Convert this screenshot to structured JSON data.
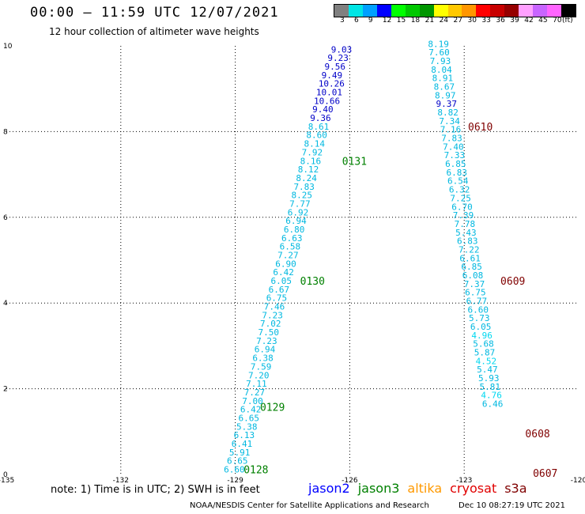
{
  "header": {
    "title": "00:00 – 11:59 UTC 12/07/2021",
    "subtitle": "12 hour collection of altimeter wave heights"
  },
  "colorbar": {
    "colors": [
      "#808080",
      "#00e5e5",
      "#00a0ff",
      "#0000ff",
      "#00ff00",
      "#00c800",
      "#009600",
      "#ffff00",
      "#ffc800",
      "#ff9600",
      "#ff0000",
      "#c80000",
      "#960000",
      "#ffa0ff",
      "#c864ff",
      "#ff64ff",
      "#000000"
    ],
    "labels": [
      "3",
      "6",
      "9",
      "12",
      "15",
      "18",
      "21",
      "24",
      "27",
      "30",
      "33",
      "36",
      "39",
      "42",
      "45",
      "70",
      "(ft)"
    ]
  },
  "map": {
    "lon_min": -135,
    "lon_max": -120,
    "lat_min": 0,
    "lat_max": 10,
    "x_ticks": [
      "-135",
      "-132",
      "-129",
      "-126",
      "-123",
      "-120"
    ],
    "y_ticks": [
      "0",
      "2",
      "4",
      "6",
      "8",
      "10"
    ],
    "grid": true
  },
  "tracks": [
    {
      "id": "track-a",
      "labels": [
        {
          "text": "0128",
          "color": "#008000",
          "lon": -128.78,
          "lat": 0.12
        },
        {
          "text": "0129",
          "color": "#008000",
          "lon": -128.35,
          "lat": 1.58
        },
        {
          "text": "0130",
          "color": "#008000",
          "lon": -127.3,
          "lat": 4.52
        },
        {
          "text": "0131",
          "color": "#008000",
          "lon": -126.2,
          "lat": 7.32
        }
      ],
      "points": [
        {
          "v": "6.60",
          "lat": 0.12,
          "lon": -129.3,
          "c": "#00b8e0"
        },
        {
          "v": "6.65",
          "lat": 0.32,
          "lon": -129.22,
          "c": "#00b8e0"
        },
        {
          "v": "5.91",
          "lat": 0.52,
          "lon": -129.16,
          "c": "#00b8e0"
        },
        {
          "v": "6.41",
          "lat": 0.72,
          "lon": -129.1,
          "c": "#00b8e0"
        },
        {
          "v": "6.13",
          "lat": 0.92,
          "lon": -129.04,
          "c": "#00b8e0"
        },
        {
          "v": "5.38",
          "lat": 1.12,
          "lon": -128.97,
          "c": "#00b8e0"
        },
        {
          "v": "6.65",
          "lat": 1.32,
          "lon": -128.92,
          "c": "#00b8e0"
        },
        {
          "v": "6.42",
          "lat": 1.52,
          "lon": -128.87,
          "c": "#00b8e0"
        },
        {
          "v": "7.00",
          "lat": 1.72,
          "lon": -128.82,
          "c": "#00b8e0"
        },
        {
          "v": "7.27",
          "lat": 1.92,
          "lon": -128.77,
          "c": "#00b8e0"
        },
        {
          "v": "7.11",
          "lat": 2.12,
          "lon": -128.72,
          "c": "#00b8e0"
        },
        {
          "v": "7.20",
          "lat": 2.32,
          "lon": -128.66,
          "c": "#00b8e0"
        },
        {
          "v": "7.59",
          "lat": 2.52,
          "lon": -128.6,
          "c": "#00b8e0"
        },
        {
          "v": "6.38",
          "lat": 2.72,
          "lon": -128.55,
          "c": "#00b8e0"
        },
        {
          "v": "6.94",
          "lat": 2.92,
          "lon": -128.5,
          "c": "#00b8e0"
        },
        {
          "v": "7.23",
          "lat": 3.12,
          "lon": -128.45,
          "c": "#00b8e0"
        },
        {
          "v": "7.50",
          "lat": 3.32,
          "lon": -128.4,
          "c": "#00b8e0"
        },
        {
          "v": "7.02",
          "lat": 3.52,
          "lon": -128.35,
          "c": "#00b8e0"
        },
        {
          "v": "7.23",
          "lat": 3.72,
          "lon": -128.3,
          "c": "#00b8e0"
        },
        {
          "v": "7.46",
          "lat": 3.92,
          "lon": -128.25,
          "c": "#00b8e0"
        },
        {
          "v": "6.75",
          "lat": 4.12,
          "lon": -128.19,
          "c": "#00b8e0"
        },
        {
          "v": "6.67",
          "lat": 4.32,
          "lon": -128.13,
          "c": "#00b8e0"
        },
        {
          "v": "6.05",
          "lat": 4.52,
          "lon": -128.07,
          "c": "#00b8e0"
        },
        {
          "v": "6.42",
          "lat": 4.72,
          "lon": -128.01,
          "c": "#00b8e0"
        },
        {
          "v": "6.90",
          "lat": 4.92,
          "lon": -127.95,
          "c": "#00b8e0"
        },
        {
          "v": "7.27",
          "lat": 5.12,
          "lon": -127.89,
          "c": "#00b8e0"
        },
        {
          "v": "6.58",
          "lat": 5.32,
          "lon": -127.84,
          "c": "#00b8e0"
        },
        {
          "v": "6.63",
          "lat": 5.52,
          "lon": -127.79,
          "c": "#00b8e0"
        },
        {
          "v": "6.80",
          "lat": 5.72,
          "lon": -127.73,
          "c": "#00b8e0"
        },
        {
          "v": "6.94",
          "lat": 5.92,
          "lon": -127.68,
          "c": "#00b8e0"
        },
        {
          "v": "6.92",
          "lat": 6.12,
          "lon": -127.63,
          "c": "#00b8e0"
        },
        {
          "v": "7.77",
          "lat": 6.32,
          "lon": -127.58,
          "c": "#00b8e0"
        },
        {
          "v": "8.25",
          "lat": 6.52,
          "lon": -127.53,
          "c": "#00b8e0"
        },
        {
          "v": "7.83",
          "lat": 6.72,
          "lon": -127.47,
          "c": "#00b8e0"
        },
        {
          "v": "8.24",
          "lat": 6.92,
          "lon": -127.41,
          "c": "#00b8e0"
        },
        {
          "v": "8.12",
          "lat": 7.12,
          "lon": -127.36,
          "c": "#00b8e0"
        },
        {
          "v": "8.16",
          "lat": 7.32,
          "lon": -127.3,
          "c": "#00b8e0"
        },
        {
          "v": "7.92",
          "lat": 7.52,
          "lon": -127.26,
          "c": "#00b8e0"
        },
        {
          "v": "8.14",
          "lat": 7.72,
          "lon": -127.2,
          "c": "#00b8e0"
        },
        {
          "v": "8.60",
          "lat": 7.92,
          "lon": -127.14,
          "c": "#00b8e0"
        },
        {
          "v": "8.61",
          "lat": 8.12,
          "lon": -127.09,
          "c": "#00b8e0"
        },
        {
          "v": "9.36",
          "lat": 8.32,
          "lon": -127.04,
          "c": "#0000c8"
        },
        {
          "v": "9.40",
          "lat": 8.52,
          "lon": -126.98,
          "c": "#0000c8"
        },
        {
          "v": "10.66",
          "lat": 8.72,
          "lon": -126.94,
          "c": "#0000c8"
        },
        {
          "v": "10.01",
          "lat": 8.92,
          "lon": -126.88,
          "c": "#0000c8"
        },
        {
          "v": "10.26",
          "lat": 9.12,
          "lon": -126.82,
          "c": "#0000c8"
        },
        {
          "v": "9.49",
          "lat": 9.32,
          "lon": -126.74,
          "c": "#0000c8"
        },
        {
          "v": "9.56",
          "lat": 9.52,
          "lon": -126.66,
          "c": "#0000c8"
        },
        {
          "v": "9.23",
          "lat": 9.72,
          "lon": -126.58,
          "c": "#0000c8"
        },
        {
          "v": "9.03",
          "lat": 9.92,
          "lon": -126.49,
          "c": "#0000c8"
        }
      ]
    },
    {
      "id": "track-b",
      "labels": [
        {
          "text": "0610",
          "color": "#800000",
          "lon": -122.9,
          "lat": 8.12
        },
        {
          "text": "0609",
          "color": "#800000",
          "lon": -122.05,
          "lat": 4.52
        },
        {
          "text": "0608",
          "color": "#800000",
          "lon": -121.4,
          "lat": 0.96
        },
        {
          "text": "0607",
          "color": "#800000",
          "lon": -121.2,
          "lat": 0.04
        }
      ],
      "points": [
        {
          "v": "8.19",
          "lat": 10.05,
          "lon": -123.95,
          "c": "#00b8e0"
        },
        {
          "v": "7.60",
          "lat": 9.85,
          "lon": -123.93,
          "c": "#00b8e0"
        },
        {
          "v": "7.93",
          "lat": 9.65,
          "lon": -123.9,
          "c": "#00b8e0"
        },
        {
          "v": "8.04",
          "lat": 9.45,
          "lon": -123.87,
          "c": "#00b8e0"
        },
        {
          "v": "8.91",
          "lat": 9.25,
          "lon": -123.84,
          "c": "#00b8e0"
        },
        {
          "v": "8.67",
          "lat": 9.05,
          "lon": -123.8,
          "c": "#00b8e0"
        },
        {
          "v": "8.97",
          "lat": 8.85,
          "lon": -123.77,
          "c": "#00b8e0"
        },
        {
          "v": "9.37",
          "lat": 8.65,
          "lon": -123.74,
          "c": "#0000c8"
        },
        {
          "v": "8.82",
          "lat": 8.45,
          "lon": -123.7,
          "c": "#00b8e0"
        },
        {
          "v": "7.34",
          "lat": 8.25,
          "lon": -123.66,
          "c": "#00b8e0"
        },
        {
          "v": "7.16",
          "lat": 8.05,
          "lon": -123.63,
          "c": "#00b8e0"
        },
        {
          "v": "7.83",
          "lat": 7.85,
          "lon": -123.6,
          "c": "#00b8e0"
        },
        {
          "v": "7.40",
          "lat": 7.65,
          "lon": -123.56,
          "c": "#00b8e0"
        },
        {
          "v": "7.33",
          "lat": 7.45,
          "lon": -123.53,
          "c": "#00b8e0"
        },
        {
          "v": "6.85",
          "lat": 7.25,
          "lon": -123.5,
          "c": "#00b8e0"
        },
        {
          "v": "6.83",
          "lat": 7.05,
          "lon": -123.47,
          "c": "#00b8e0"
        },
        {
          "v": "6.54",
          "lat": 6.85,
          "lon": -123.44,
          "c": "#00b8e0"
        },
        {
          "v": "6.32",
          "lat": 6.65,
          "lon": -123.4,
          "c": "#00b8e0"
        },
        {
          "v": "7.25",
          "lat": 6.45,
          "lon": -123.37,
          "c": "#00b8e0"
        },
        {
          "v": "6.70",
          "lat": 6.25,
          "lon": -123.33,
          "c": "#00b8e0"
        },
        {
          "v": "7.39",
          "lat": 6.05,
          "lon": -123.3,
          "c": "#00b8e0"
        },
        {
          "v": "7.78",
          "lat": 5.85,
          "lon": -123.26,
          "c": "#00b8e0"
        },
        {
          "v": "5.43",
          "lat": 5.65,
          "lon": -123.23,
          "c": "#00b8e0"
        },
        {
          "v": "6.83",
          "lat": 5.45,
          "lon": -123.19,
          "c": "#00b8e0"
        },
        {
          "v": "7.22",
          "lat": 5.25,
          "lon": -123.15,
          "c": "#00b8e0"
        },
        {
          "v": "6.61",
          "lat": 5.05,
          "lon": -123.12,
          "c": "#00b8e0"
        },
        {
          "v": "6.85",
          "lat": 4.85,
          "lon": -123.08,
          "c": "#00b8e0"
        },
        {
          "v": "6.08",
          "lat": 4.65,
          "lon": -123.05,
          "c": "#00b8e0"
        },
        {
          "v": "7.37",
          "lat": 4.45,
          "lon": -123.01,
          "c": "#00b8e0"
        },
        {
          "v": "6.75",
          "lat": 4.25,
          "lon": -122.98,
          "c": "#00b8e0"
        },
        {
          "v": "6.77",
          "lat": 4.05,
          "lon": -122.95,
          "c": "#00b8e0"
        },
        {
          "v": "6.60",
          "lat": 3.85,
          "lon": -122.91,
          "c": "#00b8e0"
        },
        {
          "v": "5.73",
          "lat": 3.65,
          "lon": -122.88,
          "c": "#00b8e0"
        },
        {
          "v": "6.05",
          "lat": 3.45,
          "lon": -122.84,
          "c": "#00b8e0"
        },
        {
          "v": "4.96",
          "lat": 3.25,
          "lon": -122.81,
          "c": "#00d8f0"
        },
        {
          "v": "5.68",
          "lat": 3.05,
          "lon": -122.77,
          "c": "#00b8e0"
        },
        {
          "v": "5.87",
          "lat": 2.85,
          "lon": -122.74,
          "c": "#00b8e0"
        },
        {
          "v": "4.52",
          "lat": 2.65,
          "lon": -122.7,
          "c": "#00d8f0"
        },
        {
          "v": "5.47",
          "lat": 2.45,
          "lon": -122.67,
          "c": "#00b8e0"
        },
        {
          "v": "5.93",
          "lat": 2.25,
          "lon": -122.63,
          "c": "#00b8e0"
        },
        {
          "v": "5.81",
          "lat": 2.05,
          "lon": -122.6,
          "c": "#00b8e0"
        },
        {
          "v": "4.76",
          "lat": 1.85,
          "lon": -122.56,
          "c": "#00d8f0"
        },
        {
          "v": "6.46",
          "lat": 1.65,
          "lon": -122.53,
          "c": "#00b8e0"
        }
      ]
    }
  ],
  "note": "note: 1) Time is in UTC; 2) SWH is in feet",
  "legend": [
    {
      "name": "jason2",
      "color": "#0000ff"
    },
    {
      "name": "jason3",
      "color": "#008000"
    },
    {
      "name": "altika",
      "color": "#ff9900"
    },
    {
      "name": "cryosat",
      "color": "#e00000"
    },
    {
      "name": "s3a",
      "color": "#800000"
    }
  ],
  "footer": {
    "left": "NOAA/NESDIS Center for Satellite Applications and Research",
    "right": "Dec 10 08:27:19 UTC 2021"
  }
}
